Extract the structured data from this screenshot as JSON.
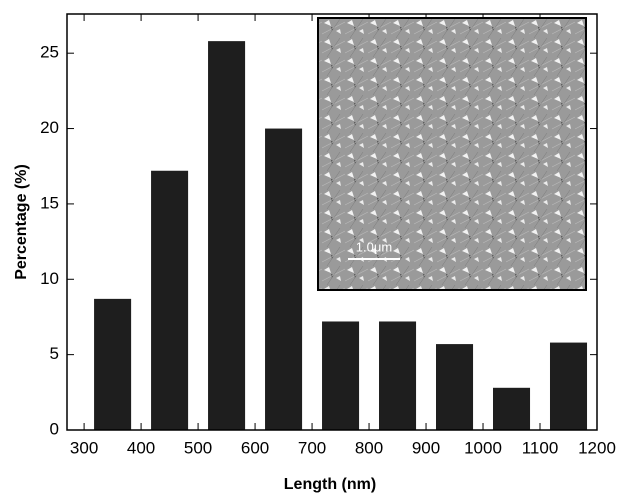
{
  "chart_data": {
    "type": "histogram",
    "x_label": "Length (nm)",
    "y_label": "Percentage (%)",
    "bins": [
      300,
      400,
      500,
      600,
      700,
      800,
      900,
      1000,
      1100,
      1200
    ],
    "values": [
      8.7,
      17.2,
      25.8,
      20.0,
      7.2,
      7.2,
      5.7,
      2.8,
      5.8
    ],
    "color": "#1e1e1e",
    "xlim": [
      270,
      1200
    ],
    "xticks": [
      300,
      400,
      500,
      600,
      700,
      800,
      900,
      1000,
      1100,
      1200
    ],
    "ylim": [
      0,
      27.6
    ],
    "yticks": [
      0,
      5,
      10,
      15,
      20,
      25
    ],
    "inset_scale_label": "1.0μm"
  }
}
